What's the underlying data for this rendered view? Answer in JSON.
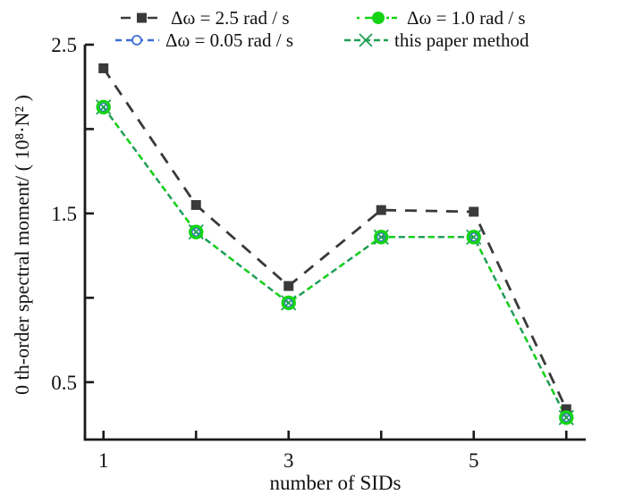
{
  "figure": {
    "background": "#ffffff",
    "axis_color": "#1a1a1a",
    "text_color": "#111111"
  },
  "chart_data": {
    "type": "line",
    "title": "",
    "xlabel": "number of SIDs",
    "ylabel": "0 th-order spectral moment/ ( 10⁸·N² )",
    "x": [
      1,
      2,
      3,
      4,
      5,
      6
    ],
    "series": [
      {
        "name": "Δω = 2.5 rad / s",
        "values": [
          2.36,
          1.55,
          1.07,
          1.52,
          1.51,
          0.34
        ],
        "color": "#3a3a3a",
        "marker": "filled-square",
        "line_style": "long-dash"
      },
      {
        "name": "Δω = 0.05 rad / s",
        "values": [
          2.13,
          1.39,
          0.97,
          1.36,
          1.36,
          0.29
        ],
        "color": "#3b6fd4",
        "marker": "open-circle",
        "line_style": "dash"
      },
      {
        "name": "Δω = 1.0 rad / s",
        "values": [
          2.13,
          1.39,
          0.97,
          1.36,
          1.36,
          0.29
        ],
        "color": "#15d415",
        "marker": "filled-circle",
        "line_style": "dash-dot"
      },
      {
        "name": "this paper method",
        "values": [
          2.13,
          1.39,
          0.97,
          1.36,
          1.36,
          0.29
        ],
        "color": "#1f9e54",
        "marker": "x-cross",
        "line_style": "dash"
      }
    ],
    "note": "series 1, 2 and 3 overlap exactly on the plot",
    "xlim": [
      0.8,
      6.21
    ],
    "ylim": [
      0.16,
      2.5
    ],
    "xticks_all": [
      1,
      2,
      3,
      4,
      5,
      6
    ],
    "xticks_labeled": [
      "1",
      "3",
      "5"
    ],
    "xticks_labeled_values": [
      1,
      3,
      5
    ],
    "yticks_all": [
      0.5,
      1.0,
      1.5,
      2.0,
      2.5
    ],
    "yticks_labeled": [
      "0.5",
      "1.5",
      "2.5"
    ],
    "yticks_labeled_values": [
      0.5,
      1.5,
      2.5
    ],
    "grid": false,
    "legend_position": "top"
  }
}
